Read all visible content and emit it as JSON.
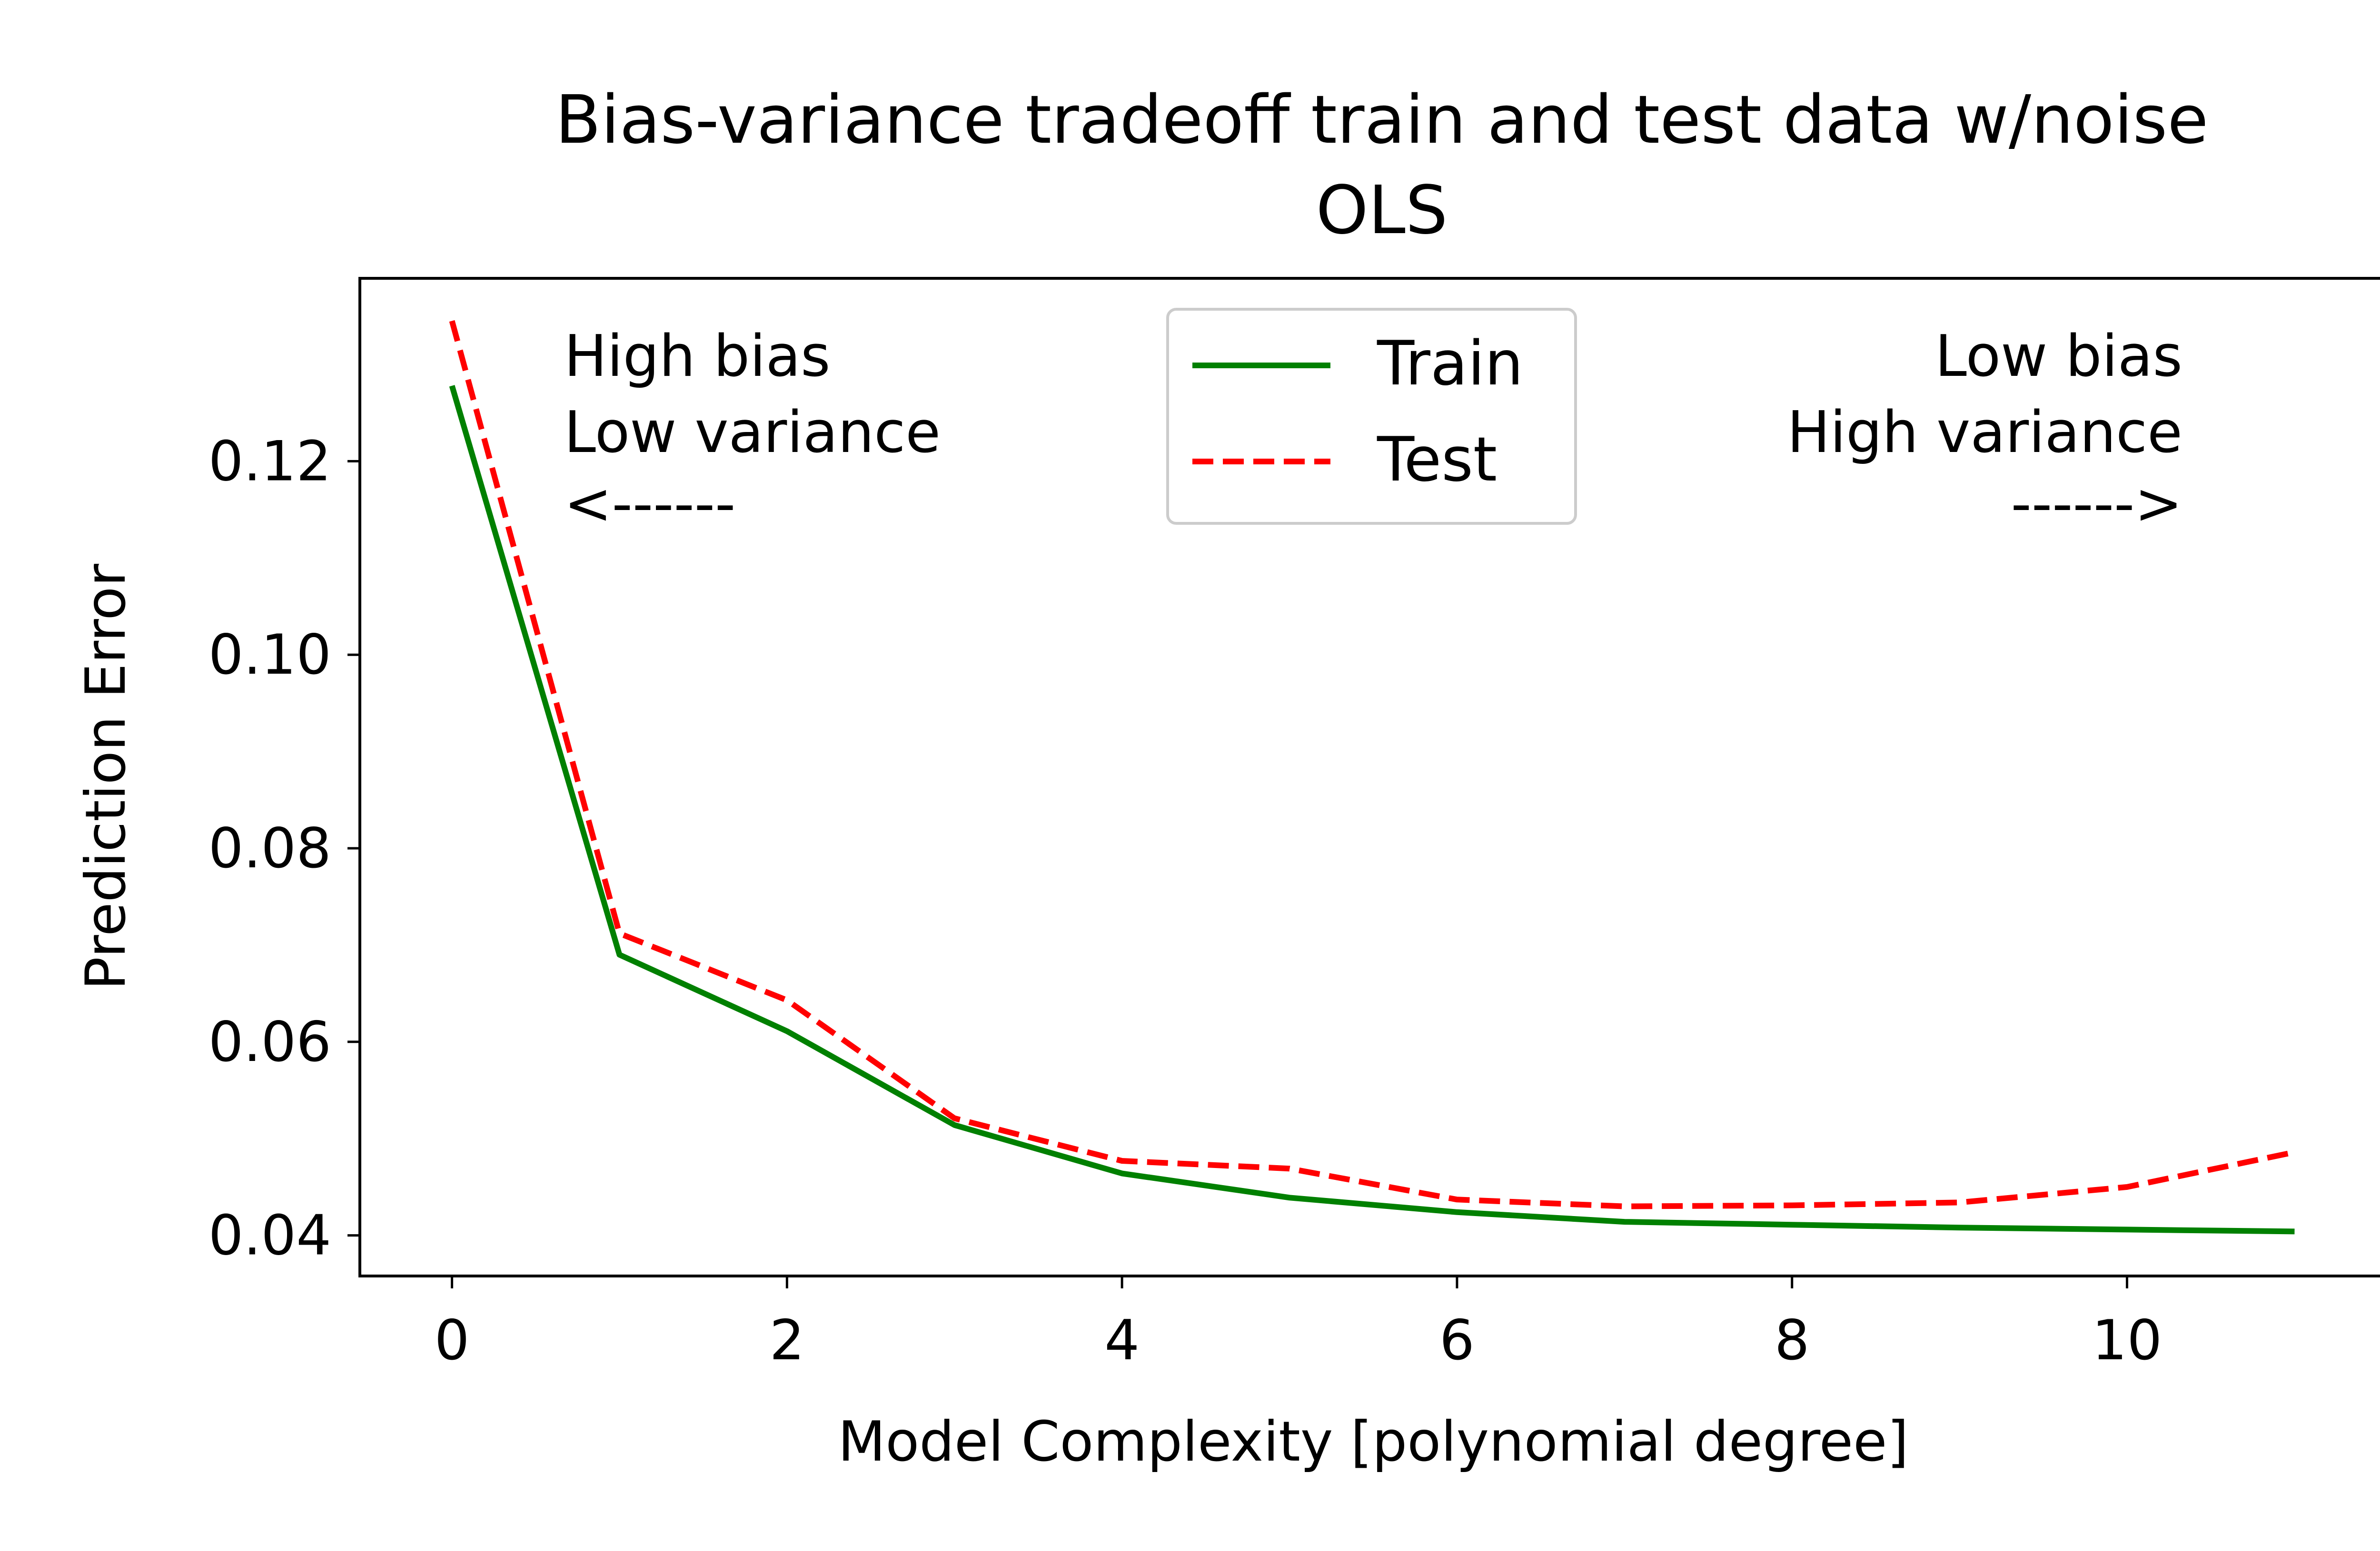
{
  "chart_data": {
    "type": "line",
    "title": "Bias-variance tradeoff train and test data w/noise",
    "subtitle": "OLS",
    "xlabel": "Model Complexity [polynomial degree]",
    "ylabel": "Prediction Error",
    "xlim": [
      -0.55,
      11.55
    ],
    "ylim": [
      0.0358,
      0.1389
    ],
    "xticks": [
      0,
      2,
      4,
      6,
      8,
      10
    ],
    "xtick_labels": [
      "0",
      "2",
      "4",
      "6",
      "8",
      "10"
    ],
    "yticks": [
      0.04,
      0.06,
      0.08,
      0.1,
      0.12
    ],
    "ytick_labels": [
      "0.04",
      "0.06",
      "0.08",
      "0.10",
      "0.12"
    ],
    "grid": false,
    "legend_position": "top-center",
    "x": [
      0,
      1,
      2,
      3,
      4,
      5,
      6,
      7,
      8,
      9,
      10,
      11
    ],
    "series": [
      {
        "name": "Train",
        "color": "#008000",
        "style": "solid",
        "values": [
          0.1278,
          0.069,
          0.0611,
          0.0514,
          0.0464,
          0.0439,
          0.0424,
          0.0414,
          0.0411,
          0.0408,
          0.0406,
          0.0404
        ]
      },
      {
        "name": "Test",
        "color": "#ff0000",
        "style": "dashed",
        "values": [
          0.1345,
          0.0712,
          0.0643,
          0.0521,
          0.0477,
          0.0469,
          0.0437,
          0.043,
          0.0431,
          0.0434,
          0.045,
          0.0486
        ]
      }
    ],
    "annotations": {
      "left": [
        "High bias",
        "Low variance",
        "<------"
      ],
      "right": [
        "Low bias",
        "High variance",
        "------>"
      ]
    }
  }
}
